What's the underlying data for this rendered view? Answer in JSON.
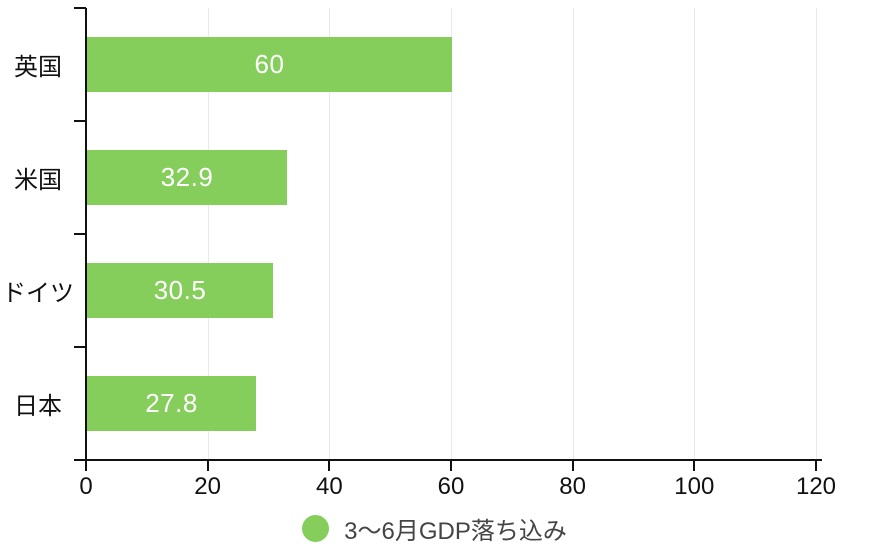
{
  "chart_data": {
    "type": "bar",
    "orientation": "horizontal",
    "title": "",
    "xlabel": "",
    "ylabel": "",
    "categories": [
      "英国",
      "米国",
      "ドイツ",
      "日本"
    ],
    "values": [
      60,
      32.9,
      30.5,
      27.8
    ],
    "value_labels": [
      "60",
      "32.9",
      "30.5",
      "27.8"
    ],
    "series": [
      {
        "name": "3〜6月GDP落ち込み",
        "values": [
          60,
          32.9,
          30.5,
          27.8
        ]
      }
    ],
    "xlim": [
      0,
      120
    ],
    "xticks": [
      0,
      20,
      40,
      60,
      80,
      100,
      120
    ],
    "xtick_labels": [
      "0",
      "20",
      "40",
      "60",
      "80",
      "100",
      "120"
    ],
    "grid": "vertical light-gray gridlines at each x tick",
    "legend_position": "bottom-center"
  },
  "legend": {
    "marker": "circle-icon",
    "label": "3〜6月GDP落ち込み"
  },
  "colors": {
    "bar": "#85ce5c",
    "legend_marker": "#85ce5c",
    "axis": "#111111",
    "grid": "#e9e9e9",
    "value_text": "#ffffff",
    "category_text": "#111111",
    "tick_text": "#111111",
    "legend_text": "#444444",
    "background": "#ffffff"
  }
}
